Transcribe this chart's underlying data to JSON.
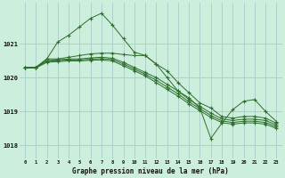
{
  "title": "Graphe pression niveau de la mer (hPa)",
  "background_color": "#cceedd",
  "grid_color": "#aacccc",
  "line_color": "#2d6e2d",
  "xlim": [
    -0.5,
    23.5
  ],
  "ylim": [
    1017.6,
    1022.2
  ],
  "yticks": [
    1018,
    1019,
    1020,
    1021
  ],
  "xticks": [
    0,
    1,
    2,
    3,
    4,
    5,
    6,
    7,
    8,
    9,
    10,
    11,
    12,
    13,
    14,
    15,
    16,
    17,
    18,
    19,
    20,
    21,
    22,
    23
  ],
  "lines": [
    {
      "x": [
        0,
        1,
        2,
        3,
        4,
        5,
        6,
        7,
        8,
        9,
        10,
        11,
        12,
        13,
        14,
        15,
        16,
        17,
        18,
        19,
        20,
        21,
        22,
        23
      ],
      "y": [
        1020.3,
        1020.3,
        1020.55,
        1021.05,
        1021.25,
        1021.5,
        1021.75,
        1021.9,
        1021.55,
        1021.15,
        1020.75,
        1020.65,
        1020.4,
        1020.0,
        1019.6,
        1019.4,
        1019.1,
        1018.2,
        1018.65,
        1019.05,
        1019.3,
        1019.35,
        1019.0,
        1018.7
      ]
    },
    {
      "x": [
        0,
        1,
        2,
        3,
        4,
        5,
        6,
        7,
        8,
        9,
        10,
        11,
        12,
        13,
        14,
        15,
        16,
        17,
        18,
        19,
        20,
        21,
        22,
        23
      ],
      "y": [
        1020.3,
        1020.3,
        1020.55,
        1020.55,
        1020.6,
        1020.65,
        1020.7,
        1020.72,
        1020.72,
        1020.68,
        1020.65,
        1020.65,
        1020.4,
        1020.2,
        1019.85,
        1019.55,
        1019.25,
        1019.1,
        1018.85,
        1018.8,
        1018.85,
        1018.85,
        1018.8,
        1018.65
      ]
    },
    {
      "x": [
        0,
        1,
        2,
        3,
        4,
        5,
        6,
        7,
        8,
        9,
        10,
        11,
        12,
        13,
        14,
        15,
        16,
        17,
        18,
        19,
        20,
        21,
        22,
        23
      ],
      "y": [
        1020.3,
        1020.3,
        1020.5,
        1020.52,
        1020.55,
        1020.55,
        1020.58,
        1020.6,
        1020.57,
        1020.45,
        1020.3,
        1020.15,
        1020.0,
        1019.8,
        1019.6,
        1019.35,
        1019.15,
        1018.95,
        1018.78,
        1018.73,
        1018.77,
        1018.77,
        1018.73,
        1018.6
      ]
    },
    {
      "x": [
        0,
        1,
        2,
        3,
        4,
        5,
        6,
        7,
        8,
        9,
        10,
        11,
        12,
        13,
        14,
        15,
        16,
        17,
        18,
        19,
        20,
        21,
        22,
        23
      ],
      "y": [
        1020.3,
        1020.3,
        1020.48,
        1020.5,
        1020.52,
        1020.52,
        1020.54,
        1020.56,
        1020.53,
        1020.4,
        1020.25,
        1020.1,
        1019.92,
        1019.72,
        1019.52,
        1019.28,
        1019.08,
        1018.88,
        1018.72,
        1018.67,
        1018.71,
        1018.71,
        1018.67,
        1018.55
      ]
    },
    {
      "x": [
        0,
        1,
        2,
        3,
        4,
        5,
        6,
        7,
        8,
        9,
        10,
        11,
        12,
        13,
        14,
        15,
        16,
        17,
        18,
        19,
        20,
        21,
        22,
        23
      ],
      "y": [
        1020.28,
        1020.28,
        1020.45,
        1020.47,
        1020.49,
        1020.49,
        1020.51,
        1020.52,
        1020.49,
        1020.35,
        1020.2,
        1020.05,
        1019.85,
        1019.65,
        1019.45,
        1019.22,
        1019.02,
        1018.82,
        1018.67,
        1018.62,
        1018.66,
        1018.66,
        1018.62,
        1018.5
      ]
    }
  ]
}
